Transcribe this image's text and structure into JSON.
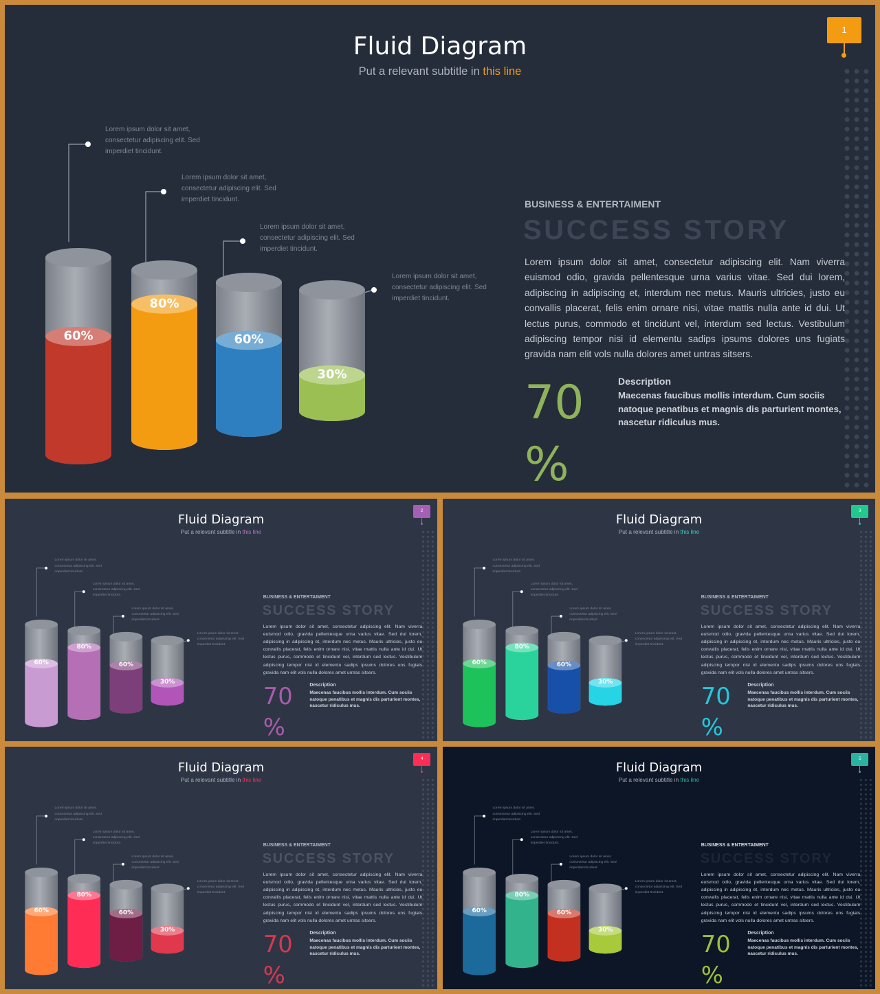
{
  "slides": [
    {
      "title": "Fluid Diagram",
      "subtitle_prefix": "Put a relevant subtitle in",
      "subtitle_accent": "this line",
      "kicker": "BUSINESS & ENTERTAIMENT",
      "heading": "SUCCESS STORY",
      "paragraph": "Lorem ipsum dolor sit amet, consectetur adipiscing elit. Nam viverra euismod odio, gravida pellentesque urna varius vitae. Sed dui lorem, adipiscing in adipiscing et, interdum nec metus. Mauris ultricies, justo eu convallis placerat, felis enim ornare nisi, vitae mattis nulla ante id dui. Ut lectus purus, commodo et tincidunt vel, interdum sed lectus. Vestibulum adipiscing tempor nisi id elementu sadips ipsums dolores uns fugiats gravida nam elit vols nulla dolores amet untras sitsers.",
      "stat_value": "70",
      "stat_unit": "%",
      "desc_title": "Description",
      "desc_text": "Maecenas faucibus mollis interdum. Cum sociis natoque penatibus et magnis dis parturient montes, nascetur ridiculus mus.",
      "page_number": "1",
      "note_text": "Lorem ipsum dolor sit amet, consectetur adipiscing elit. Sed imperdiet tincidunt.",
      "bars": [
        {
          "label": "60%",
          "value": 60,
          "color": "#c0392b"
        },
        {
          "label": "80%",
          "value": 80,
          "color": "#f39c12"
        },
        {
          "label": "60%",
          "value": 60,
          "color": "#2e7fbf"
        },
        {
          "label": "30%",
          "value": 30,
          "color": "#9bbf53"
        }
      ],
      "colors": {
        "accent": "#f39c12",
        "background": "#252d3b",
        "stat": "#8fb35a",
        "badge": "#f39c12"
      }
    },
    {
      "title": "Fluid Diagram",
      "subtitle_prefix": "Put a relevant subtitle in",
      "subtitle_accent": "this line",
      "kicker": "BUSINESS & ENTERTAIMENT",
      "heading": "SUCCESS STORY",
      "paragraph": "Lorem ipsum dolor sit amet, consectetur adipiscing elit. Nam viverra euismod odio, gravida pellentesque urna varius vitae. Sed dui lorem, adipiscing in adipiscing et, interdum nec metus. Mauris ultricies, justo eu convallis placerat, felis enim ornare nisi, vitae mattis nulla ante id dui. Ut lectus purus, commodo et tincidunt vel, interdum sed lectus. Vestibulum adipiscing tempor nisi id elementu sadips ipsums dolores uns fugiats gravida nam elit vols nulla dolores amet untras sitsers.",
      "stat_value": "70",
      "stat_unit": "%",
      "desc_title": "Description",
      "desc_text": "Maecenas faucibus mollis interdum. Cum sociis natoque penatibus et magnis dis parturient montes, nascetur ridiculus mus.",
      "page_number": "2",
      "note_text": "Lorem ipsum dolor sit amet, consectetur adipiscing elit. Sed imperdiet tincidunt.",
      "bars": [
        {
          "label": "60%",
          "value": 60,
          "color": "#c99bd3"
        },
        {
          "label": "80%",
          "value": 80,
          "color": "#b46fb5"
        },
        {
          "label": "60%",
          "value": 60,
          "color": "#7d3f79"
        },
        {
          "label": "30%",
          "value": 30,
          "color": "#b156b8"
        }
      ],
      "colors": {
        "accent": "#c06fc6",
        "background": "#2e3646",
        "stat": "#a75ca8",
        "badge": "#a55fb5"
      }
    },
    {
      "title": "Fluid Diagram",
      "subtitle_prefix": "Put a relevant subtitle in",
      "subtitle_accent": "this line",
      "kicker": "BUSINESS & ENTERTAIMENT",
      "heading": "SUCCESS STORY",
      "paragraph": "Lorem ipsum dolor sit amet, consectetur adipiscing elit. Nam viverra euismod odio, gravida pellentesque urna varius vitae. Sed dui lorem, adipiscing in adipiscing et, interdum nec metus. Mauris ultricies, justo eu convallis placerat, felis enim ornare nisi, vitae mattis nulla ante id dui. Ut lectus purus, commodo et tincidunt vel, interdum sed lectus. Vestibulum adipiscing tempor nisi id elementu sadips ipsums dolores uns fugiats gravida nam elit vols nulla dolores amet untras sitsers.",
      "stat_value": "70",
      "stat_unit": "%",
      "desc_title": "Description",
      "desc_text": "Maecenas faucibus mollis interdum. Cum sociis natoque penatibus et magnis dis parturient montes, nascetur ridiculus mus.",
      "page_number": "3",
      "note_text": "Lorem ipsum dolor sit amet, consectetur adipiscing elit. Sed imperdiet tincidunt.",
      "bars": [
        {
          "label": "60%",
          "value": 60,
          "color": "#1ec25a"
        },
        {
          "label": "80%",
          "value": 80,
          "color": "#2ad39b"
        },
        {
          "label": "60%",
          "value": 60,
          "color": "#1750a8"
        },
        {
          "label": "30%",
          "value": 30,
          "color": "#26d4e6"
        }
      ],
      "colors": {
        "accent": "#2fd4c8",
        "background": "#2e3646",
        "stat": "#26c6da",
        "badge": "#22c98f"
      }
    },
    {
      "title": "Fluid Diagram",
      "subtitle_prefix": "Put a relevant subtitle in",
      "subtitle_accent": "this line",
      "kicker": "BUSINESS & ENTERTAIMENT",
      "heading": "SUCCESS STORY",
      "paragraph": "Lorem ipsum dolor sit amet, consectetur adipiscing elit. Nam viverra euismod odio, gravida pellentesque urna varius vitae. Sed dui lorem, adipiscing in adipiscing et, interdum nec metus. Mauris ultricies, justo eu convallis placerat, felis enim ornare nisi, vitae mattis nulla ante id dui. Ut lectus purus, commodo et tincidunt vel, interdum sed lectus. Vestibulum adipiscing tempor nisi id elementu sadips ipsums dolores uns fugiats gravida nam elit vols nulla dolores amet untras sitsers.",
      "stat_value": "70",
      "stat_unit": "%",
      "desc_title": "Description",
      "desc_text": "Maecenas faucibus mollis interdum. Cum sociis natoque penatibus et magnis dis parturient montes, nascetur ridiculus mus.",
      "page_number": "4",
      "note_text": "Lorem ipsum dolor sit amet, consectetur adipiscing elit. Sed imperdiet tincidunt.",
      "bars": [
        {
          "label": "60%",
          "value": 60,
          "color": "#ff7a33"
        },
        {
          "label": "80%",
          "value": 80,
          "color": "#ff2d55"
        },
        {
          "label": "60%",
          "value": 60,
          "color": "#6e1d44"
        },
        {
          "label": "30%",
          "value": 30,
          "color": "#e0384c"
        }
      ],
      "colors": {
        "accent": "#ff2d55",
        "background": "#2e3646",
        "stat": "#d23a4f",
        "badge": "#ff2d55"
      }
    },
    {
      "title": "Fluid Diagram",
      "subtitle_prefix": "Put a relevant subtitle in",
      "subtitle_accent": "this line",
      "kicker": "BUSINESS & ENTERTAIMENT",
      "heading": "SUCCESS STORY",
      "paragraph": "Lorem ipsum dolor sit amet, consectetur adipiscing elit. Nam viverra euismod odio, gravida pellentesque urna varius vitae. Sed dui lorem, adipiscing in adipiscing et, interdum nec metus. Mauris ultricies, justo eu convallis placerat, felis enim ornare nisi, vitae mattis nulla ante id dui. Ut lectus purus, commodo et tincidunt vel, interdum sed lectus. Vestibulum adipiscing tempor nisi id elementu sadips ipsums dolores uns fugiats gravida nam elit vols nulla dolores amet untras sitsers.",
      "stat_value": "70",
      "stat_unit": "%",
      "desc_title": "Description",
      "desc_text": "Maecenas faucibus mollis interdum. Cum sociis natoque penatibus et magnis dis parturient montes, nascetur ridiculus mus.",
      "page_number": "5",
      "note_text": "Lorem ipsum dolor sit amet, consectetur adipiscing elit. Sed imperdiet tincidunt.",
      "bars": [
        {
          "label": "60%",
          "value": 60,
          "color": "#1b6a9b"
        },
        {
          "label": "80%",
          "value": 80,
          "color": "#32b38c"
        },
        {
          "label": "60%",
          "value": 60,
          "color": "#c4301f"
        },
        {
          "label": "30%",
          "value": 30,
          "color": "#a7c93a"
        }
      ],
      "colors": {
        "accent": "#2ab3a0",
        "background": "#0d1626",
        "stat": "#9dbf3b",
        "badge": "#2ab3a0"
      }
    }
  ]
}
